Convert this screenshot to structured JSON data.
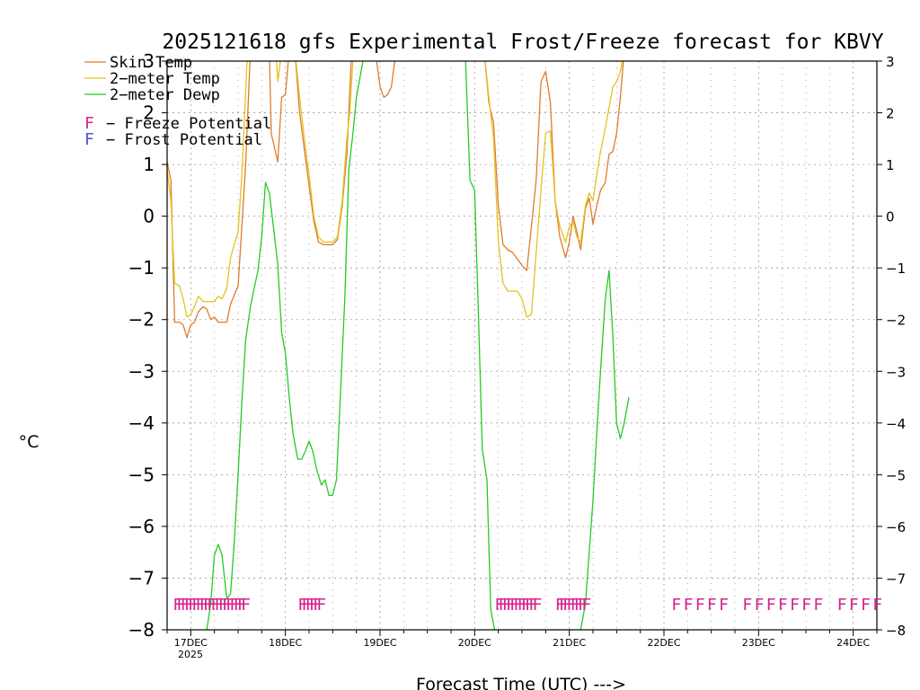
{
  "chart_data": {
    "type": "line",
    "title": "2025121618 gfs Experimental Frost/Freeze forecast for KBVY",
    "xlabel": "Forecast Time (UTC) --->",
    "ylabel": "°C",
    "ylim": [
      -8,
      3
    ],
    "yticks_left": [
      "−8",
      "−7",
      "−6",
      "−5",
      "−4",
      "−3",
      "−2",
      "−1",
      "0",
      "1",
      "2",
      "3"
    ],
    "yticks_right": [
      "−8",
      "−7",
      "−6",
      "−5",
      "−4",
      "−3",
      "−2",
      "−1",
      "0",
      "1",
      "2",
      "3"
    ],
    "ytick_values": [
      -8,
      -7,
      -6,
      -5,
      -4,
      -3,
      -2,
      -1,
      0,
      1,
      2,
      3
    ],
    "xlim_days": [
      16.75,
      24.25
    ],
    "xticks": [
      {
        "day": 17,
        "label": "17DEC"
      },
      {
        "day": 18,
        "label": "18DEC"
      },
      {
        "day": 19,
        "label": "19DEC"
      },
      {
        "day": 20,
        "label": "20DEC"
      },
      {
        "day": 21,
        "label": "21DEC"
      },
      {
        "day": 22,
        "label": "22DEC"
      },
      {
        "day": 23,
        "label": "23DEC"
      },
      {
        "day": 24,
        "label": "24DEC"
      }
    ],
    "year_label": "2025",
    "grid": true,
    "legend": [
      {
        "text": "Skin Temp",
        "color": "#e07b2e"
      },
      {
        "text": "2−meter Temp",
        "color": "#e6c21e"
      },
      {
        "text": "2−meter Dewp",
        "color": "#22cc22"
      }
    ],
    "potential_legend": [
      {
        "symbol": "F",
        "text": "− Freeze Potential",
        "color": "#d6218c"
      },
      {
        "symbol": "F",
        "text": "− Frost Potential",
        "color": "#4f4fe0"
      }
    ],
    "series": [
      {
        "name": "Skin Temp",
        "color": "#e07b2e",
        "points": [
          [
            16.75,
            1.05
          ],
          [
            16.79,
            0.7
          ],
          [
            16.83,
            -2.05
          ],
          [
            16.88,
            -2.05
          ],
          [
            16.92,
            -2.1
          ],
          [
            16.96,
            -2.35
          ],
          [
            17.0,
            -2.1
          ],
          [
            17.04,
            -2.05
          ],
          [
            17.08,
            -1.85
          ],
          [
            17.13,
            -1.75
          ],
          [
            17.17,
            -1.8
          ],
          [
            17.21,
            -2.0
          ],
          [
            17.25,
            -1.95
          ],
          [
            17.29,
            -2.05
          ],
          [
            17.38,
            -2.05
          ],
          [
            17.42,
            -1.7
          ],
          [
            17.5,
            -1.35
          ],
          [
            17.54,
            -0.2
          ],
          [
            17.58,
            1.0
          ],
          [
            17.63,
            3.2
          ],
          [
            17.83,
            3.2
          ],
          [
            17.85,
            1.6
          ],
          [
            17.92,
            1.05
          ],
          [
            17.96,
            2.3
          ],
          [
            18.0,
            2.35
          ],
          [
            18.04,
            3.2
          ],
          [
            18.1,
            3.2
          ],
          [
            18.15,
            2.0
          ],
          [
            18.2,
            1.3
          ],
          [
            18.25,
            0.6
          ],
          [
            18.3,
            -0.1
          ],
          [
            18.35,
            -0.5
          ],
          [
            18.4,
            -0.55
          ],
          [
            18.5,
            -0.55
          ],
          [
            18.55,
            -0.45
          ],
          [
            18.6,
            0.2
          ],
          [
            18.65,
            1.2
          ],
          [
            18.7,
            3.2
          ],
          [
            18.95,
            3.2
          ],
          [
            19.0,
            2.5
          ],
          [
            19.04,
            2.3
          ],
          [
            19.08,
            2.35
          ],
          [
            19.12,
            2.5
          ],
          [
            19.17,
            3.2
          ],
          [
            20.1,
            3.2
          ],
          [
            20.15,
            2.2
          ],
          [
            20.2,
            1.8
          ],
          [
            20.25,
            0.2
          ],
          [
            20.3,
            -0.55
          ],
          [
            20.35,
            -0.65
          ],
          [
            20.4,
            -0.7
          ],
          [
            20.5,
            -0.95
          ],
          [
            20.55,
            -1.05
          ],
          [
            20.6,
            -0.2
          ],
          [
            20.65,
            0.7
          ],
          [
            20.7,
            2.6
          ],
          [
            20.75,
            2.8
          ],
          [
            20.8,
            2.2
          ],
          [
            20.85,
            0.3
          ],
          [
            20.9,
            -0.4
          ],
          [
            20.96,
            -0.8
          ],
          [
            21.0,
            -0.5
          ],
          [
            21.04,
            0.0
          ],
          [
            21.08,
            -0.3
          ],
          [
            21.12,
            -0.65
          ],
          [
            21.17,
            0.15
          ],
          [
            21.21,
            0.35
          ],
          [
            21.25,
            -0.15
          ],
          [
            21.29,
            0.2
          ],
          [
            21.33,
            0.5
          ],
          [
            21.38,
            0.65
          ],
          [
            21.42,
            1.2
          ],
          [
            21.46,
            1.25
          ],
          [
            21.5,
            1.6
          ],
          [
            21.54,
            2.3
          ],
          [
            21.58,
            3.2
          ]
        ]
      },
      {
        "name": "2-meter Temp",
        "color": "#e6c21e",
        "points": [
          [
            16.75,
            0.9
          ],
          [
            16.79,
            0.3
          ],
          [
            16.83,
            -1.3
          ],
          [
            16.88,
            -1.35
          ],
          [
            16.92,
            -1.6
          ],
          [
            16.96,
            -1.95
          ],
          [
            17.0,
            -1.9
          ],
          [
            17.04,
            -1.75
          ],
          [
            17.08,
            -1.55
          ],
          [
            17.13,
            -1.65
          ],
          [
            17.25,
            -1.65
          ],
          [
            17.29,
            -1.55
          ],
          [
            17.33,
            -1.6
          ],
          [
            17.38,
            -1.4
          ],
          [
            17.42,
            -0.8
          ],
          [
            17.5,
            -0.3
          ],
          [
            17.54,
            0.8
          ],
          [
            17.6,
            3.2
          ],
          [
            17.9,
            3.2
          ],
          [
            17.92,
            2.6
          ],
          [
            17.96,
            3.2
          ],
          [
            18.1,
            3.2
          ],
          [
            18.15,
            2.3
          ],
          [
            18.2,
            1.5
          ],
          [
            18.25,
            0.8
          ],
          [
            18.3,
            0.0
          ],
          [
            18.35,
            -0.4
          ],
          [
            18.4,
            -0.5
          ],
          [
            18.5,
            -0.5
          ],
          [
            18.55,
            -0.4
          ],
          [
            18.6,
            0.3
          ],
          [
            18.65,
            1.5
          ],
          [
            18.68,
            2.0
          ],
          [
            18.72,
            3.2
          ],
          [
            20.1,
            3.2
          ],
          [
            20.15,
            2.3
          ],
          [
            20.2,
            1.5
          ],
          [
            20.25,
            -0.5
          ],
          [
            20.3,
            -1.3
          ],
          [
            20.35,
            -1.45
          ],
          [
            20.45,
            -1.45
          ],
          [
            20.5,
            -1.6
          ],
          [
            20.55,
            -1.95
          ],
          [
            20.6,
            -1.9
          ],
          [
            20.65,
            -0.7
          ],
          [
            20.7,
            0.5
          ],
          [
            20.75,
            1.6
          ],
          [
            20.8,
            1.65
          ],
          [
            20.85,
            0.3
          ],
          [
            20.9,
            -0.2
          ],
          [
            20.96,
            -0.5
          ],
          [
            21.0,
            -0.2
          ],
          [
            21.04,
            -0.1
          ],
          [
            21.08,
            -0.4
          ],
          [
            21.12,
            -0.5
          ],
          [
            21.17,
            0.2
          ],
          [
            21.21,
            0.45
          ],
          [
            21.25,
            0.3
          ],
          [
            21.29,
            0.8
          ],
          [
            21.33,
            1.25
          ],
          [
            21.38,
            1.7
          ],
          [
            21.42,
            2.1
          ],
          [
            21.46,
            2.5
          ],
          [
            21.5,
            2.6
          ],
          [
            21.54,
            2.8
          ],
          [
            21.58,
            3.2
          ]
        ]
      },
      {
        "name": "2-meter Dewp",
        "color": "#22cc22",
        "points": [
          [
            17.17,
            -8.0
          ],
          [
            17.21,
            -7.5
          ],
          [
            17.25,
            -6.55
          ],
          [
            17.29,
            -6.35
          ],
          [
            17.33,
            -6.55
          ],
          [
            17.38,
            -7.4
          ],
          [
            17.42,
            -7.3
          ],
          [
            17.46,
            -6.3
          ],
          [
            17.5,
            -5.0
          ],
          [
            17.54,
            -3.6
          ],
          [
            17.58,
            -2.4
          ],
          [
            17.63,
            -1.75
          ],
          [
            17.67,
            -1.4
          ],
          [
            17.71,
            -1.05
          ],
          [
            17.75,
            -0.4
          ],
          [
            17.79,
            0.65
          ],
          [
            17.83,
            0.45
          ],
          [
            17.88,
            -0.3
          ],
          [
            17.92,
            -0.95
          ],
          [
            17.96,
            -2.25
          ],
          [
            18.0,
            -2.65
          ],
          [
            18.04,
            -3.5
          ],
          [
            18.08,
            -4.2
          ],
          [
            18.13,
            -4.7
          ],
          [
            18.17,
            -4.7
          ],
          [
            18.21,
            -4.55
          ],
          [
            18.25,
            -4.35
          ],
          [
            18.29,
            -4.55
          ],
          [
            18.33,
            -4.9
          ],
          [
            18.38,
            -5.2
          ],
          [
            18.42,
            -5.1
          ],
          [
            18.46,
            -5.4
          ],
          [
            18.5,
            -5.4
          ],
          [
            18.54,
            -5.1
          ],
          [
            18.58,
            -3.5
          ],
          [
            18.63,
            -1.5
          ],
          [
            18.67,
            0.9
          ],
          [
            18.71,
            1.55
          ],
          [
            18.75,
            2.3
          ],
          [
            18.8,
            2.8
          ],
          [
            18.84,
            3.2
          ],
          [
            19.9,
            3.2
          ],
          [
            19.95,
            0.7
          ],
          [
            20.0,
            0.5
          ],
          [
            20.04,
            -1.9
          ],
          [
            20.08,
            -4.5
          ],
          [
            20.13,
            -5.1
          ],
          [
            20.17,
            -7.6
          ],
          [
            20.21,
            -8.0
          ],
          [
            21.12,
            -8.0
          ],
          [
            21.17,
            -7.5
          ],
          [
            21.21,
            -6.5
          ],
          [
            21.25,
            -5.5
          ],
          [
            21.29,
            -4.2
          ],
          [
            21.33,
            -3.0
          ],
          [
            21.38,
            -1.6
          ],
          [
            21.42,
            -1.05
          ],
          [
            21.46,
            -2.3
          ],
          [
            21.5,
            -4.0
          ],
          [
            21.54,
            -4.3
          ],
          [
            21.58,
            -4.0
          ],
          [
            21.63,
            -3.5
          ]
        ]
      }
    ],
    "potential_markers": [
      {
        "text": "FFFFFFFFFFFFFFFFFFF",
        "color": "#d6218c",
        "start_day": 16.81,
        "step_days": 0.04,
        "value": -7.5,
        "overstrike": true
      },
      {
        "text": "FFFFFF",
        "color": "#d6218c",
        "start_day": 18.13,
        "step_days": 0.04,
        "value": -7.5,
        "overstrike": true
      },
      {
        "text": "FFFFFFFFFFF",
        "color": "#d6218c",
        "start_day": 20.21,
        "step_days": 0.04,
        "value": -7.5,
        "overstrike": true
      },
      {
        "text": "FFFFFFFF",
        "color": "#d6218c",
        "start_day": 20.85,
        "step_days": 0.04,
        "value": -7.5,
        "overstrike": true
      },
      {
        "text": "FFFFF",
        "color": "#d6218c",
        "start_day": 22.08,
        "step_days": 0.125,
        "value": -7.5,
        "overstrike": false
      },
      {
        "text": "FFFFFFF",
        "color": "#d6218c",
        "start_day": 22.83,
        "step_days": 0.125,
        "value": -7.5,
        "overstrike": false
      },
      {
        "text": "FFFF",
        "color": "#d6218c",
        "start_day": 23.83,
        "step_days": 0.125,
        "value": -7.5,
        "overstrike": false
      }
    ]
  }
}
